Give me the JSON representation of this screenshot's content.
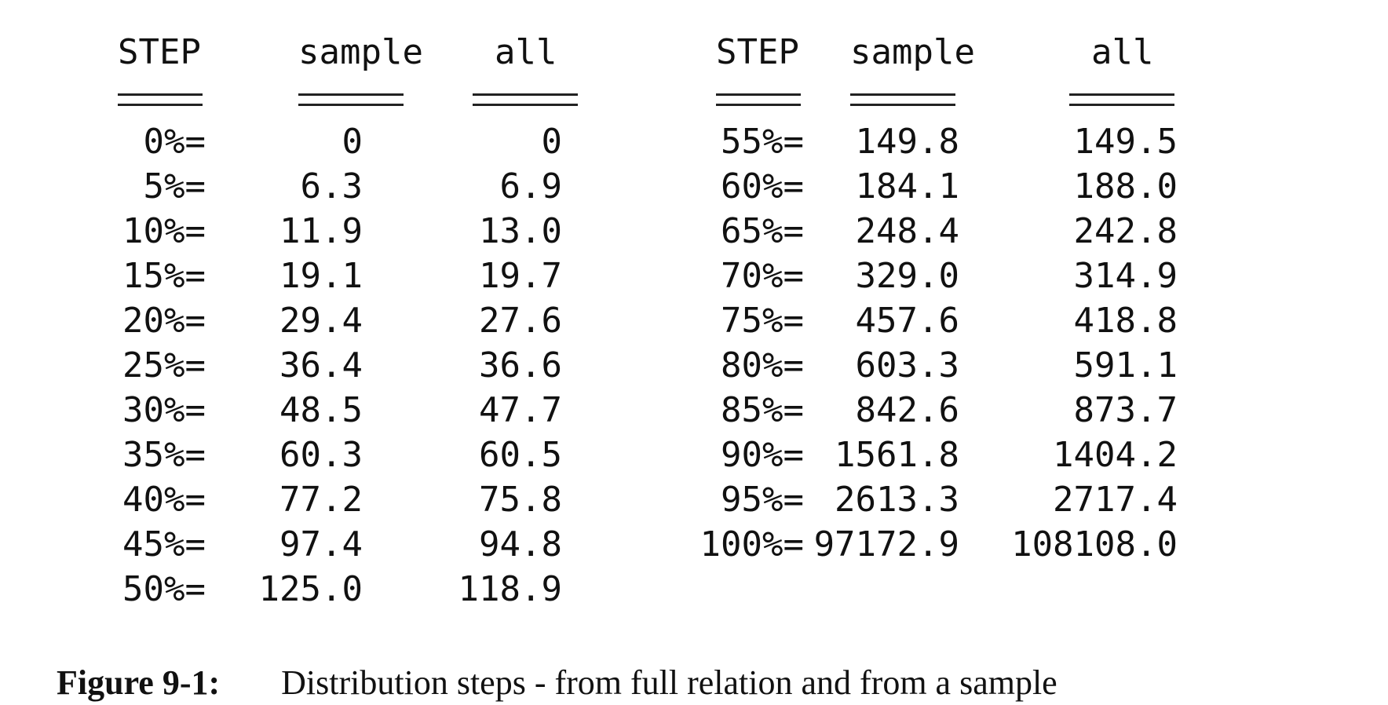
{
  "table": {
    "left": {
      "headers": {
        "step": "STEP",
        "sample": "sample",
        "all": "all"
      },
      "rule": {
        "step": "====",
        "sample": "=====",
        "all": "====="
      },
      "rows": [
        {
          "step": "0%=",
          "sample": "0",
          "all": "0"
        },
        {
          "step": "5%=",
          "sample": "6.3",
          "all": "6.9"
        },
        {
          "step": "10%=",
          "sample": "11.9",
          "all": "13.0"
        },
        {
          "step": "15%=",
          "sample": "19.1",
          "all": "19.7"
        },
        {
          "step": "20%=",
          "sample": "29.4",
          "all": "27.6"
        },
        {
          "step": "25%=",
          "sample": "36.4",
          "all": "36.6"
        },
        {
          "step": "30%=",
          "sample": "48.5",
          "all": "47.7"
        },
        {
          "step": "35%=",
          "sample": "60.3",
          "all": "60.5"
        },
        {
          "step": "40%=",
          "sample": "77.2",
          "all": "75.8"
        },
        {
          "step": "45%=",
          "sample": "97.4",
          "all": "94.8"
        },
        {
          "step": "50%=",
          "sample": "125.0",
          "all": "118.9"
        }
      ]
    },
    "right": {
      "headers": {
        "step": "STEP",
        "sample": "sample",
        "all": "all"
      },
      "rule": {
        "step": "====",
        "sample": "=====",
        "all": "====="
      },
      "rows": [
        {
          "step": "55%=",
          "sample": "149.8",
          "all": "149.5"
        },
        {
          "step": "60%=",
          "sample": "184.1",
          "all": "188.0"
        },
        {
          "step": "65%=",
          "sample": "248.4",
          "all": "242.8"
        },
        {
          "step": "70%=",
          "sample": "329.0",
          "all": "314.9"
        },
        {
          "step": "75%=",
          "sample": "457.6",
          "all": "418.8"
        },
        {
          "step": "80%=",
          "sample": "603.3",
          "all": "591.1"
        },
        {
          "step": "85%=",
          "sample": "842.6",
          "all": "873.7"
        },
        {
          "step": "90%=",
          "sample": "1561.8",
          "all": "1404.2"
        },
        {
          "step": "95%=",
          "sample": "2613.3",
          "all": "2717.4"
        },
        {
          "step": "100%=",
          "sample": "97172.9",
          "all": "108108.0"
        }
      ]
    }
  },
  "caption": {
    "label": "Figure 9-1:",
    "text": "Distribution steps - from full relation and from a sample"
  }
}
